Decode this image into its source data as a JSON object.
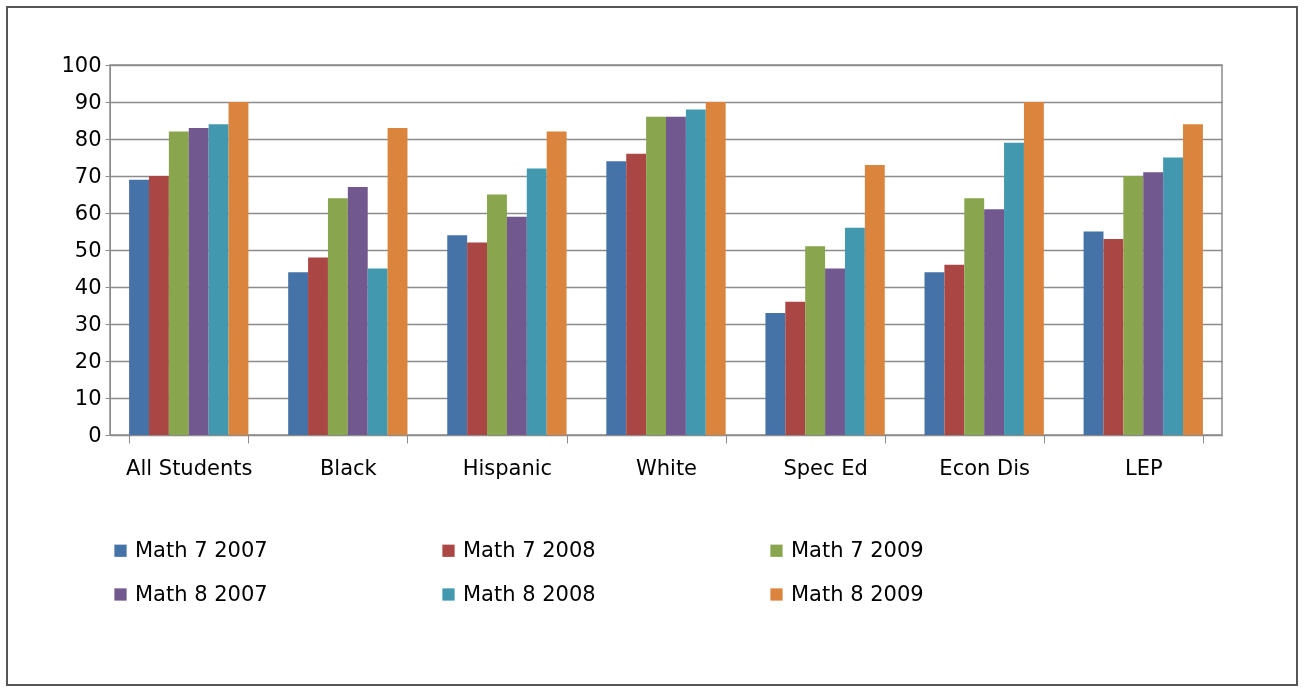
{
  "chart_data": {
    "type": "bar",
    "categories": [
      "All Students",
      "Black",
      "Hispanic",
      "White",
      "Spec Ed",
      "Econ Dis",
      "LEP"
    ],
    "series": [
      {
        "name": "Math 7 2007",
        "color": "#4572a7",
        "values": [
          69,
          44,
          54,
          74,
          33,
          44,
          55
        ]
      },
      {
        "name": "Math 7 2008",
        "color": "#aa4643",
        "values": [
          70,
          48,
          52,
          76,
          36,
          46,
          53
        ]
      },
      {
        "name": "Math 7 2009",
        "color": "#89a54e",
        "values": [
          82,
          64,
          65,
          86,
          51,
          64,
          70
        ]
      },
      {
        "name": "Math 8 2007",
        "color": "#71588f",
        "values": [
          83,
          67,
          59,
          86,
          45,
          61,
          71
        ]
      },
      {
        "name": "Math 8 2008",
        "color": "#4198af",
        "values": [
          84,
          45,
          72,
          88,
          56,
          79,
          75
        ]
      },
      {
        "name": "Math 8 2009",
        "color": "#db843d",
        "values": [
          90,
          83,
          82,
          90,
          73,
          90,
          84
        ]
      }
    ],
    "ylim": [
      0,
      100
    ],
    "yticks": [
      0,
      10,
      20,
      30,
      40,
      50,
      60,
      70,
      80,
      90,
      100
    ],
    "grid": "y",
    "legend": "bottom"
  }
}
